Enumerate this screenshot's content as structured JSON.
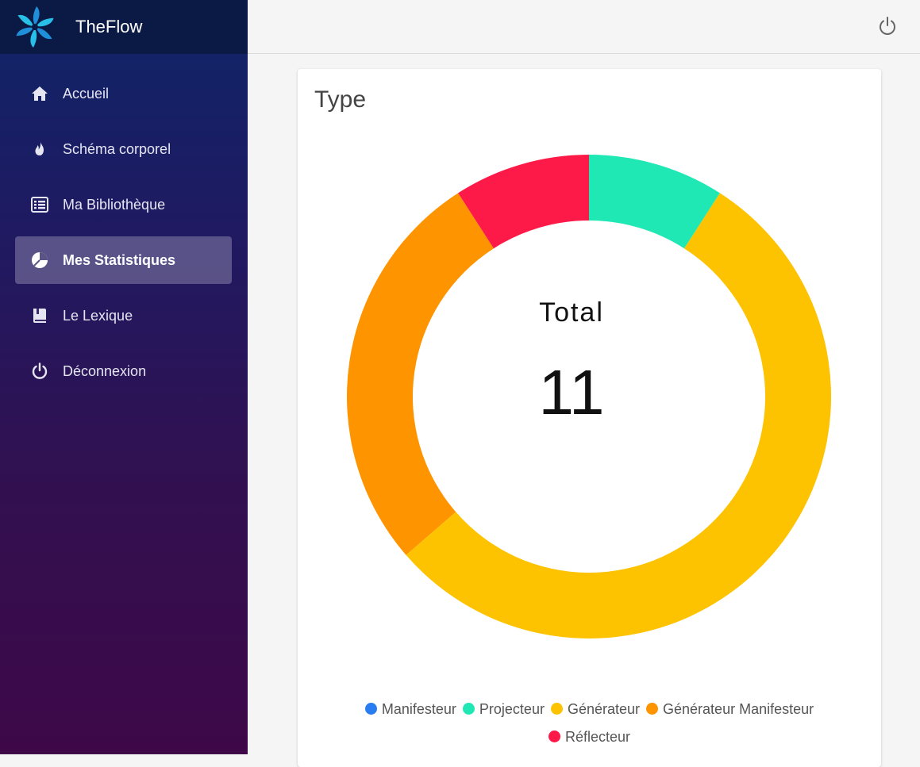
{
  "app": {
    "name": "TheFlow"
  },
  "sidebar": {
    "items": [
      {
        "label": "Accueil",
        "icon": "home-icon"
      },
      {
        "label": "Schéma corporel",
        "icon": "flame-icon"
      },
      {
        "label": "Ma Bibliothèque",
        "icon": "list-icon"
      },
      {
        "label": "Mes Statistiques",
        "icon": "pie-chart-icon",
        "active": true
      },
      {
        "label": "Le Lexique",
        "icon": "book-icon"
      },
      {
        "label": "Déconnexion",
        "icon": "power-icon"
      }
    ]
  },
  "topbar": {
    "icon": "power-icon"
  },
  "card": {
    "title": "Type",
    "center_label": "Total",
    "center_value": "11"
  },
  "chart_data": {
    "type": "pie",
    "categories": [
      "Manifesteur",
      "Projecteur",
      "Générateur",
      "Générateur Manifesteur",
      "Réflecteur"
    ],
    "values": [
      0,
      1,
      6,
      3,
      1
    ],
    "colors": [
      "#2a7df0",
      "#20e8b4",
      "#fdc300",
      "#fd9400",
      "#fd1a48"
    ],
    "legend_position": "bottom"
  }
}
